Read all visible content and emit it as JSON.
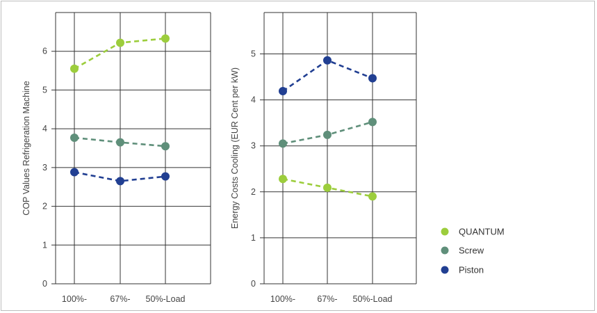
{
  "chart_data": [
    {
      "type": "line",
      "ylabel": "COP Values Refrigeration Machine",
      "xlabel": "",
      "categories": [
        "100%-",
        "67%-",
        "50%-Load"
      ],
      "yticks": [
        "0",
        "1",
        "2",
        "3",
        "4",
        "5",
        "6"
      ],
      "ylim": [
        0,
        7
      ],
      "grid": true,
      "series": [
        {
          "name": "QUANTUM",
          "values": [
            5.55,
            6.22,
            6.33
          ],
          "color": "#9ccd3c"
        },
        {
          "name": "Screw",
          "values": [
            3.77,
            3.65,
            3.55
          ],
          "color": "#5f8f7a"
        },
        {
          "name": "Piston",
          "values": [
            2.88,
            2.65,
            2.77
          ],
          "color": "#213f92"
        }
      ]
    },
    {
      "type": "line",
      "ylabel": "Energy Costs Cooling (EUR Cent per kW)",
      "xlabel": "",
      "categories": [
        "100%-",
        "67%-",
        "50%-Load"
      ],
      "yticks": [
        "0",
        "1",
        "2",
        "3",
        "4",
        "5"
      ],
      "ylim": [
        0,
        5.9
      ],
      "grid": true,
      "series": [
        {
          "name": "QUANTUM",
          "values": [
            2.28,
            2.09,
            1.9
          ],
          "color": "#9ccd3c"
        },
        {
          "name": "Screw",
          "values": [
            3.05,
            3.24,
            3.52
          ],
          "color": "#5f8f7a"
        },
        {
          "name": "Piston",
          "values": [
            4.19,
            4.86,
            4.47
          ],
          "color": "#213f92"
        }
      ]
    }
  ],
  "legend": {
    "position": "right",
    "items": [
      {
        "label": "QUANTUM",
        "color": "#9ccd3c"
      },
      {
        "label": "Screw",
        "color": "#5f8f7a"
      },
      {
        "label": "Piston",
        "color": "#213f92"
      }
    ]
  }
}
